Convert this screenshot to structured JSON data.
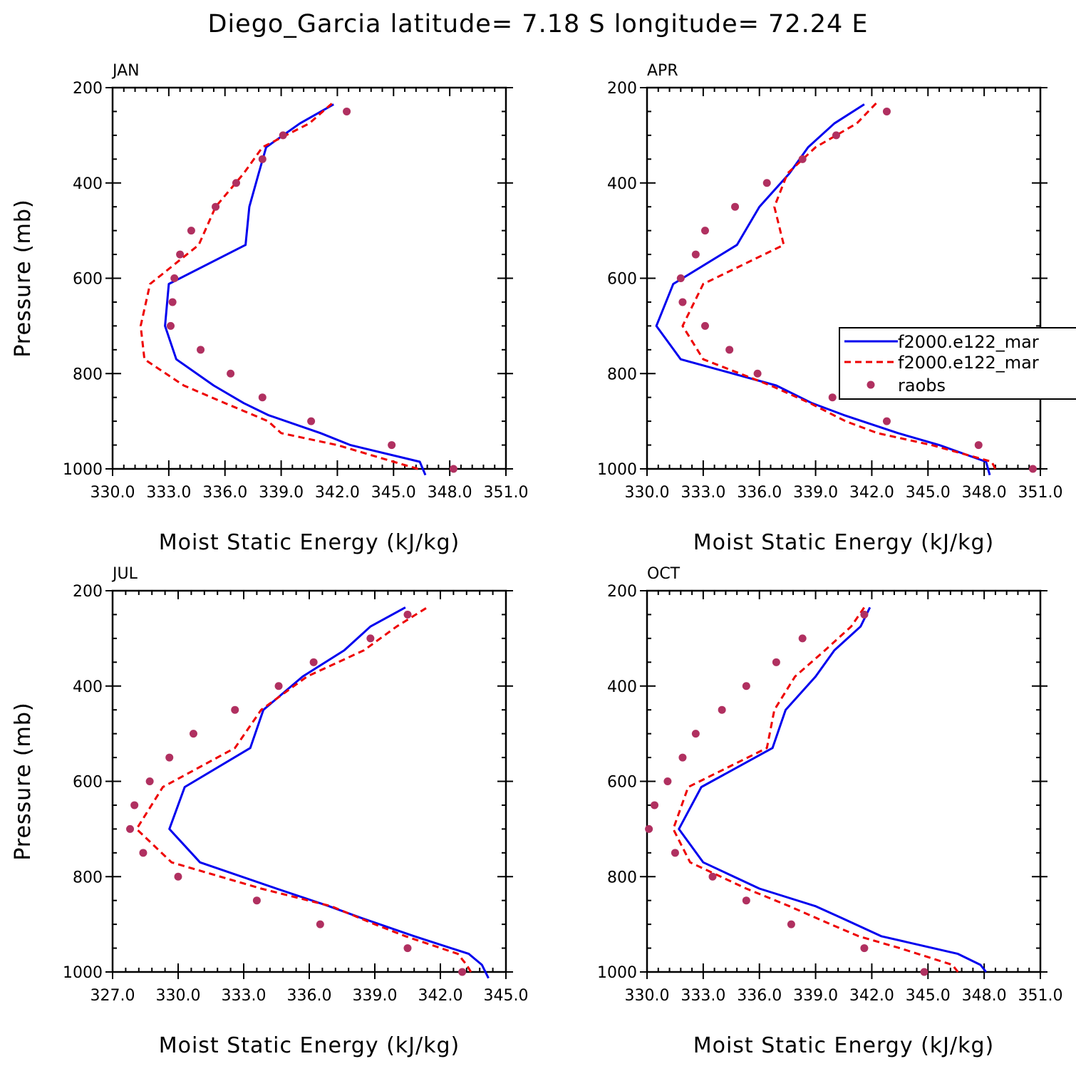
{
  "figure": {
    "title": "Diego_Garcia  latitude= 7.18 S longitude= 72.24 E"
  },
  "legend": {
    "entries": [
      {
        "label": "f2000.e122_mar",
        "color": "#0000ee",
        "style": "solid"
      },
      {
        "label": "f2000.e122_mar",
        "color": "#ee0000",
        "style": "dashed"
      },
      {
        "label": "raobs",
        "color": "#b03060",
        "style": "marker"
      }
    ]
  },
  "colors": {
    "model_1": "#0000ee",
    "model_2": "#ee0000",
    "obs": "#b03060",
    "axis": "#000000"
  },
  "chart_data": [
    {
      "type": "line",
      "title": "JAN",
      "xlabel": "Moist Static Energy (kJ/kg)",
      "ylabel": "Pressure (mb)",
      "xlim": [
        330.0,
        351.0
      ],
      "ylim": [
        1000,
        200
      ],
      "xticks": [
        "330.0",
        "333.0",
        "336.0",
        "339.0",
        "342.0",
        "345.0",
        "348.0",
        "351.0"
      ],
      "yticks": [
        "200",
        "400",
        "600",
        "800",
        "1000"
      ],
      "series": [
        {
          "name": "f2000.e122_mar (solid)",
          "pressure": [
            1013,
            985,
            950,
            925,
            887,
            862,
            825,
            770,
            700,
            612,
            530,
            450,
            380,
            325,
            275,
            235
          ],
          "mse": [
            346.7,
            346.4,
            342.7,
            341.1,
            338.3,
            337.0,
            335.4,
            333.4,
            332.8,
            333.0,
            337.1,
            337.3,
            337.8,
            338.2,
            340.0,
            341.8
          ]
        },
        {
          "name": "f2000.e122_mar (dashed)",
          "pressure": [
            1000,
            985,
            950,
            925,
            900,
            862,
            825,
            770,
            700,
            612,
            530,
            450,
            380,
            325,
            275,
            230
          ],
          "mse": [
            346.3,
            345.0,
            342.0,
            339.0,
            338.3,
            336.0,
            333.8,
            331.7,
            331.5,
            332.0,
            334.6,
            335.5,
            337.0,
            338.0,
            340.5,
            341.8
          ]
        },
        {
          "name": "raobs",
          "pressure": [
            1000,
            950,
            900,
            850,
            800,
            750,
            700,
            650,
            600,
            550,
            500,
            450,
            400,
            350,
            300,
            250
          ],
          "mse": [
            348.2,
            344.9,
            340.6,
            338.0,
            336.3,
            334.7,
            333.1,
            333.2,
            333.3,
            333.6,
            334.2,
            335.5,
            336.6,
            338.0,
            339.1,
            342.5
          ]
        }
      ]
    },
    {
      "type": "line",
      "title": "APR",
      "xlabel": "Moist Static Energy (kJ/kg)",
      "ylabel": "Pressure (mb)",
      "xlim": [
        330.0,
        351.0
      ],
      "ylim": [
        1000,
        200
      ],
      "xticks": [
        "330.0",
        "333.0",
        "336.0",
        "339.0",
        "342.0",
        "345.0",
        "348.0",
        "351.0"
      ],
      "yticks": [
        "200",
        "400",
        "600",
        "800",
        "1000"
      ],
      "series": [
        {
          "name": "f2000.e122_mar (solid)",
          "pressure": [
            1013,
            985,
            950,
            925,
            887,
            862,
            825,
            770,
            700,
            612,
            530,
            450,
            380,
            325,
            275,
            235
          ],
          "mse": [
            348.3,
            348.1,
            345.6,
            343.4,
            340.5,
            338.8,
            336.9,
            331.8,
            330.5,
            331.4,
            334.8,
            336.0,
            337.6,
            338.6,
            340.0,
            341.6
          ]
        },
        {
          "name": "f2000.e122_mar (dashed)",
          "pressure": [
            1000,
            985,
            950,
            925,
            900,
            862,
            825,
            770,
            700,
            612,
            530,
            450,
            380,
            325,
            275,
            230
          ],
          "mse": [
            348.6,
            348.4,
            345.2,
            342.3,
            340.6,
            338.7,
            336.6,
            333.0,
            331.9,
            333.0,
            337.3,
            336.8,
            337.5,
            339.0,
            341.2,
            342.3
          ]
        },
        {
          "name": "raobs",
          "pressure": [
            1000,
            950,
            900,
            850,
            800,
            750,
            700,
            650,
            600,
            550,
            500,
            450,
            400,
            350,
            300,
            250
          ],
          "mse": [
            350.6,
            347.7,
            342.8,
            339.9,
            335.9,
            334.4,
            333.1,
            331.9,
            331.8,
            332.6,
            333.1,
            334.7,
            336.4,
            338.3,
            340.1,
            342.8
          ]
        }
      ]
    },
    {
      "type": "line",
      "title": "JUL",
      "xlabel": "Moist Static Energy (kJ/kg)",
      "ylabel": "Pressure (mb)",
      "xlim": [
        327.0,
        345.0
      ],
      "ylim": [
        1000,
        200
      ],
      "xticks": [
        "327.0",
        "330.0",
        "333.0",
        "336.0",
        "339.0",
        "342.0",
        "345.0"
      ],
      "yticks": [
        "200",
        "400",
        "600",
        "800",
        "1000"
      ],
      "series": [
        {
          "name": "f2000.e122_mar (solid)",
          "pressure": [
            1013,
            985,
            962,
            925,
            887,
            862,
            825,
            770,
            700,
            612,
            530,
            450,
            380,
            325,
            275,
            235
          ],
          "mse": [
            344.2,
            343.9,
            343.3,
            340.8,
            338.4,
            336.9,
            334.5,
            331.0,
            329.6,
            330.3,
            333.3,
            333.9,
            335.7,
            337.6,
            338.8,
            340.4
          ]
        },
        {
          "name": "f2000.e122_mar (dashed)",
          "pressure": [
            1000,
            985,
            962,
            925,
            900,
            862,
            825,
            770,
            700,
            612,
            530,
            450,
            380,
            325,
            275,
            235
          ],
          "mse": [
            343.4,
            343.2,
            342.8,
            340.4,
            339.0,
            337.0,
            333.8,
            329.7,
            328.1,
            329.3,
            332.6,
            333.8,
            335.9,
            338.5,
            340.0,
            341.4
          ]
        },
        {
          "name": "raobs",
          "pressure": [
            1000,
            950,
            900,
            850,
            800,
            750,
            700,
            650,
            600,
            550,
            500,
            450,
            400,
            350,
            300,
            250
          ],
          "mse": [
            343.0,
            340.5,
            336.5,
            333.6,
            330.0,
            328.4,
            327.8,
            328.0,
            328.7,
            329.6,
            330.7,
            332.6,
            334.6,
            336.2,
            338.8,
            340.5
          ]
        }
      ]
    },
    {
      "type": "line",
      "title": "OCT",
      "xlabel": "Moist Static Energy (kJ/kg)",
      "ylabel": "Pressure (mb)",
      "xlim": [
        330.0,
        351.0
      ],
      "ylim": [
        1000,
        200
      ],
      "xticks": [
        "330.0",
        "333.0",
        "336.0",
        "339.0",
        "342.0",
        "345.0",
        "348.0",
        "351.0"
      ],
      "yticks": [
        "200",
        "400",
        "600",
        "800",
        "1000"
      ],
      "series": [
        {
          "name": "f2000.e122_mar (solid)",
          "pressure": [
            1000,
            985,
            962,
            925,
            887,
            862,
            825,
            770,
            700,
            612,
            530,
            450,
            380,
            325,
            275,
            235
          ],
          "mse": [
            348.1,
            347.8,
            346.6,
            342.5,
            340.4,
            339.0,
            336.0,
            333.0,
            331.7,
            332.9,
            336.7,
            337.4,
            339.0,
            340.0,
            341.4,
            341.9
          ]
        },
        {
          "name": "f2000.e122_mar (dashed)",
          "pressure": [
            1000,
            985,
            950,
            925,
            900,
            862,
            825,
            770,
            700,
            612,
            530,
            450,
            380,
            325,
            275,
            235
          ],
          "mse": [
            346.6,
            346.3,
            343.5,
            341.3,
            339.8,
            337.6,
            335.3,
            332.3,
            331.4,
            332.2,
            336.4,
            336.8,
            337.9,
            339.5,
            340.9,
            341.6
          ]
        },
        {
          "name": "raobs",
          "pressure": [
            1000,
            950,
            900,
            850,
            800,
            750,
            700,
            650,
            600,
            550,
            500,
            450,
            400,
            350,
            300,
            250
          ],
          "mse": [
            344.8,
            341.6,
            337.7,
            335.3,
            333.5,
            331.5,
            330.1,
            330.4,
            331.1,
            331.9,
            332.6,
            334.0,
            335.3,
            336.9,
            338.3,
            341.6
          ]
        }
      ]
    }
  ]
}
